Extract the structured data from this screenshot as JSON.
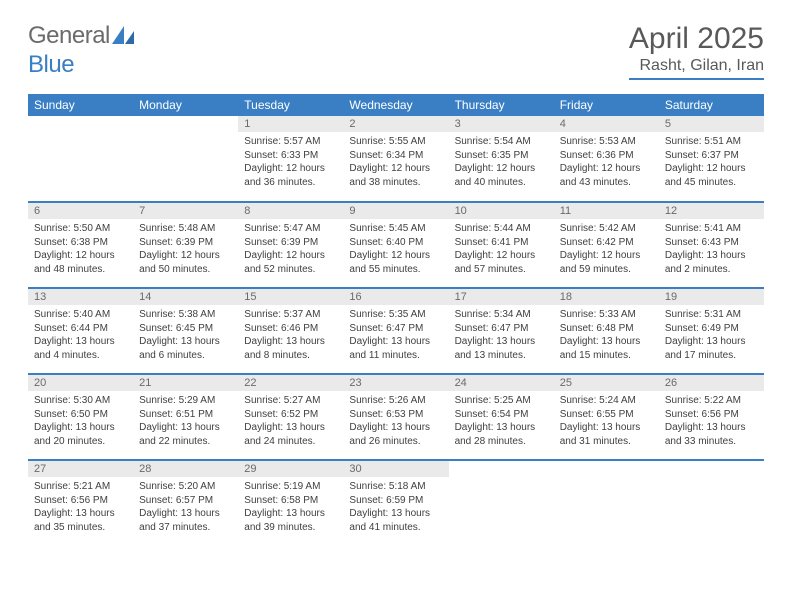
{
  "brand": {
    "part1": "General",
    "part2": "Blue"
  },
  "title": "April 2025",
  "location": "Rasht, Gilan, Iran",
  "colors": {
    "accent": "#3a7fc4",
    "header_text": "#ffffff",
    "daynum_bg": "#eaeaea",
    "daynum_fg": "#6a6a6a",
    "body_text": "#404040",
    "title_fg": "#595959",
    "logo_gray": "#6b6b6b"
  },
  "weekdays": [
    "Sunday",
    "Monday",
    "Tuesday",
    "Wednesday",
    "Thursday",
    "Friday",
    "Saturday"
  ],
  "weeks": [
    [
      null,
      null,
      {
        "n": "1",
        "sr": "5:57 AM",
        "ss": "6:33 PM",
        "d1": "12 hours",
        "d2": "and 36 minutes."
      },
      {
        "n": "2",
        "sr": "5:55 AM",
        "ss": "6:34 PM",
        "d1": "12 hours",
        "d2": "and 38 minutes."
      },
      {
        "n": "3",
        "sr": "5:54 AM",
        "ss": "6:35 PM",
        "d1": "12 hours",
        "d2": "and 40 minutes."
      },
      {
        "n": "4",
        "sr": "5:53 AM",
        "ss": "6:36 PM",
        "d1": "12 hours",
        "d2": "and 43 minutes."
      },
      {
        "n": "5",
        "sr": "5:51 AM",
        "ss": "6:37 PM",
        "d1": "12 hours",
        "d2": "and 45 minutes."
      }
    ],
    [
      {
        "n": "6",
        "sr": "5:50 AM",
        "ss": "6:38 PM",
        "d1": "12 hours",
        "d2": "and 48 minutes."
      },
      {
        "n": "7",
        "sr": "5:48 AM",
        "ss": "6:39 PM",
        "d1": "12 hours",
        "d2": "and 50 minutes."
      },
      {
        "n": "8",
        "sr": "5:47 AM",
        "ss": "6:39 PM",
        "d1": "12 hours",
        "d2": "and 52 minutes."
      },
      {
        "n": "9",
        "sr": "5:45 AM",
        "ss": "6:40 PM",
        "d1": "12 hours",
        "d2": "and 55 minutes."
      },
      {
        "n": "10",
        "sr": "5:44 AM",
        "ss": "6:41 PM",
        "d1": "12 hours",
        "d2": "and 57 minutes."
      },
      {
        "n": "11",
        "sr": "5:42 AM",
        "ss": "6:42 PM",
        "d1": "12 hours",
        "d2": "and 59 minutes."
      },
      {
        "n": "12",
        "sr": "5:41 AM",
        "ss": "6:43 PM",
        "d1": "13 hours",
        "d2": "and 2 minutes."
      }
    ],
    [
      {
        "n": "13",
        "sr": "5:40 AM",
        "ss": "6:44 PM",
        "d1": "13 hours",
        "d2": "and 4 minutes."
      },
      {
        "n": "14",
        "sr": "5:38 AM",
        "ss": "6:45 PM",
        "d1": "13 hours",
        "d2": "and 6 minutes."
      },
      {
        "n": "15",
        "sr": "5:37 AM",
        "ss": "6:46 PM",
        "d1": "13 hours",
        "d2": "and 8 minutes."
      },
      {
        "n": "16",
        "sr": "5:35 AM",
        "ss": "6:47 PM",
        "d1": "13 hours",
        "d2": "and 11 minutes."
      },
      {
        "n": "17",
        "sr": "5:34 AM",
        "ss": "6:47 PM",
        "d1": "13 hours",
        "d2": "and 13 minutes."
      },
      {
        "n": "18",
        "sr": "5:33 AM",
        "ss": "6:48 PM",
        "d1": "13 hours",
        "d2": "and 15 minutes."
      },
      {
        "n": "19",
        "sr": "5:31 AM",
        "ss": "6:49 PM",
        "d1": "13 hours",
        "d2": "and 17 minutes."
      }
    ],
    [
      {
        "n": "20",
        "sr": "5:30 AM",
        "ss": "6:50 PM",
        "d1": "13 hours",
        "d2": "and 20 minutes."
      },
      {
        "n": "21",
        "sr": "5:29 AM",
        "ss": "6:51 PM",
        "d1": "13 hours",
        "d2": "and 22 minutes."
      },
      {
        "n": "22",
        "sr": "5:27 AM",
        "ss": "6:52 PM",
        "d1": "13 hours",
        "d2": "and 24 minutes."
      },
      {
        "n": "23",
        "sr": "5:26 AM",
        "ss": "6:53 PM",
        "d1": "13 hours",
        "d2": "and 26 minutes."
      },
      {
        "n": "24",
        "sr": "5:25 AM",
        "ss": "6:54 PM",
        "d1": "13 hours",
        "d2": "and 28 minutes."
      },
      {
        "n": "25",
        "sr": "5:24 AM",
        "ss": "6:55 PM",
        "d1": "13 hours",
        "d2": "and 31 minutes."
      },
      {
        "n": "26",
        "sr": "5:22 AM",
        "ss": "6:56 PM",
        "d1": "13 hours",
        "d2": "and 33 minutes."
      }
    ],
    [
      {
        "n": "27",
        "sr": "5:21 AM",
        "ss": "6:56 PM",
        "d1": "13 hours",
        "d2": "and 35 minutes."
      },
      {
        "n": "28",
        "sr": "5:20 AM",
        "ss": "6:57 PM",
        "d1": "13 hours",
        "d2": "and 37 minutes."
      },
      {
        "n": "29",
        "sr": "5:19 AM",
        "ss": "6:58 PM",
        "d1": "13 hours",
        "d2": "and 39 minutes."
      },
      {
        "n": "30",
        "sr": "5:18 AM",
        "ss": "6:59 PM",
        "d1": "13 hours",
        "d2": "and 41 minutes."
      },
      null,
      null,
      null
    ]
  ],
  "labels": {
    "sunrise": "Sunrise: ",
    "sunset": "Sunset: ",
    "daylight": "Daylight: "
  }
}
